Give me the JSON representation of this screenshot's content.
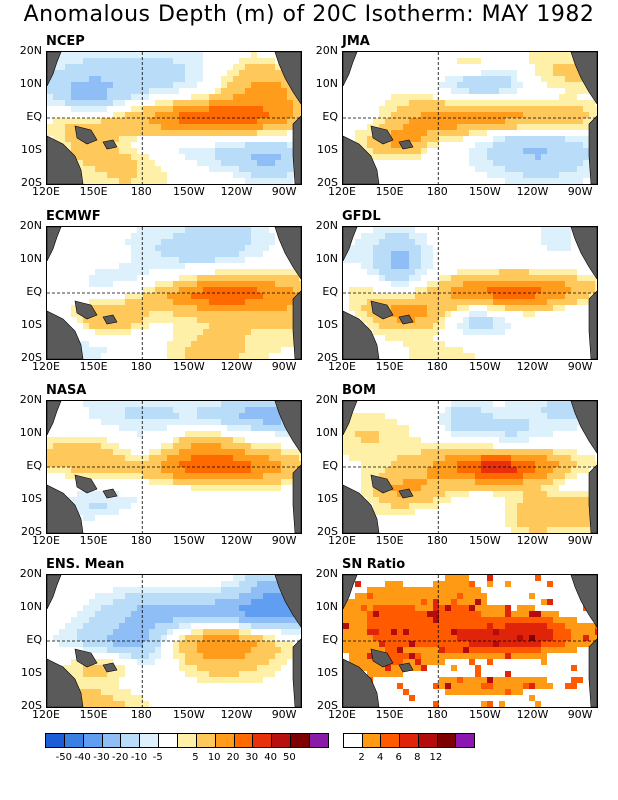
{
  "title": "Anomalous Depth (m) of 20C Isotherm: MAY 1982",
  "lat_labels": [
    "20N",
    "10N",
    "EQ",
    "10S",
    "20S"
  ],
  "lon_labels": [
    "120E",
    "150E",
    "180",
    "150W",
    "120W",
    "90W"
  ],
  "panels": [
    {
      "name": "NCEP"
    },
    {
      "name": "JMA"
    },
    {
      "name": "ECMWF"
    },
    {
      "name": "GFDL"
    },
    {
      "name": "NASA"
    },
    {
      "name": "BOM"
    },
    {
      "name": "ENS. Mean"
    },
    {
      "name": "SN Ratio"
    }
  ],
  "colors": {
    "land": "#5a5a5a",
    "anomaly_scale": [
      "#1a5dd6",
      "#3a7fe2",
      "#5f9ef0",
      "#8fbdf5",
      "#b9dcf8",
      "#dcf1fb",
      "#ffffff",
      "#fff0a8",
      "#ffc85a",
      "#ff9c1c",
      "#ff6a00",
      "#e8300c",
      "#b80f0f",
      "#7f0000",
      "#8a1aa8"
    ],
    "sn_scale": [
      "#ffffff",
      "#ff9a14",
      "#ff5a00",
      "#e0240a",
      "#b40c0c",
      "#7d0000",
      "#8c16b0"
    ]
  },
  "chart_data": {
    "type": "heatmap",
    "title": "Anomalous Depth (m) of 20C Isotherm: MAY 1982",
    "x_ticks": [
      "120E",
      "150E",
      "180",
      "150W",
      "120W",
      "90W"
    ],
    "y_ticks": [
      "20N",
      "10N",
      "EQ",
      "10S",
      "20S"
    ],
    "xlim": [
      "120E",
      "80W"
    ],
    "ylim": [
      "20S",
      "20N"
    ],
    "panels": [
      "NCEP",
      "JMA",
      "ECMWF",
      "GFDL",
      "NASA",
      "BOM",
      "ENS. Mean",
      "SN Ratio"
    ],
    "anomaly_colorbar_labels": [
      "-50",
      "-40",
      "-30",
      "-20",
      "-10",
      "-5",
      "5",
      "10",
      "20",
      "30",
      "40",
      "50"
    ],
    "sn_colorbar_labels": [
      "2",
      "4",
      "6",
      "8",
      "12"
    ],
    "grid_lines": [
      "EQ",
      "180"
    ]
  }
}
